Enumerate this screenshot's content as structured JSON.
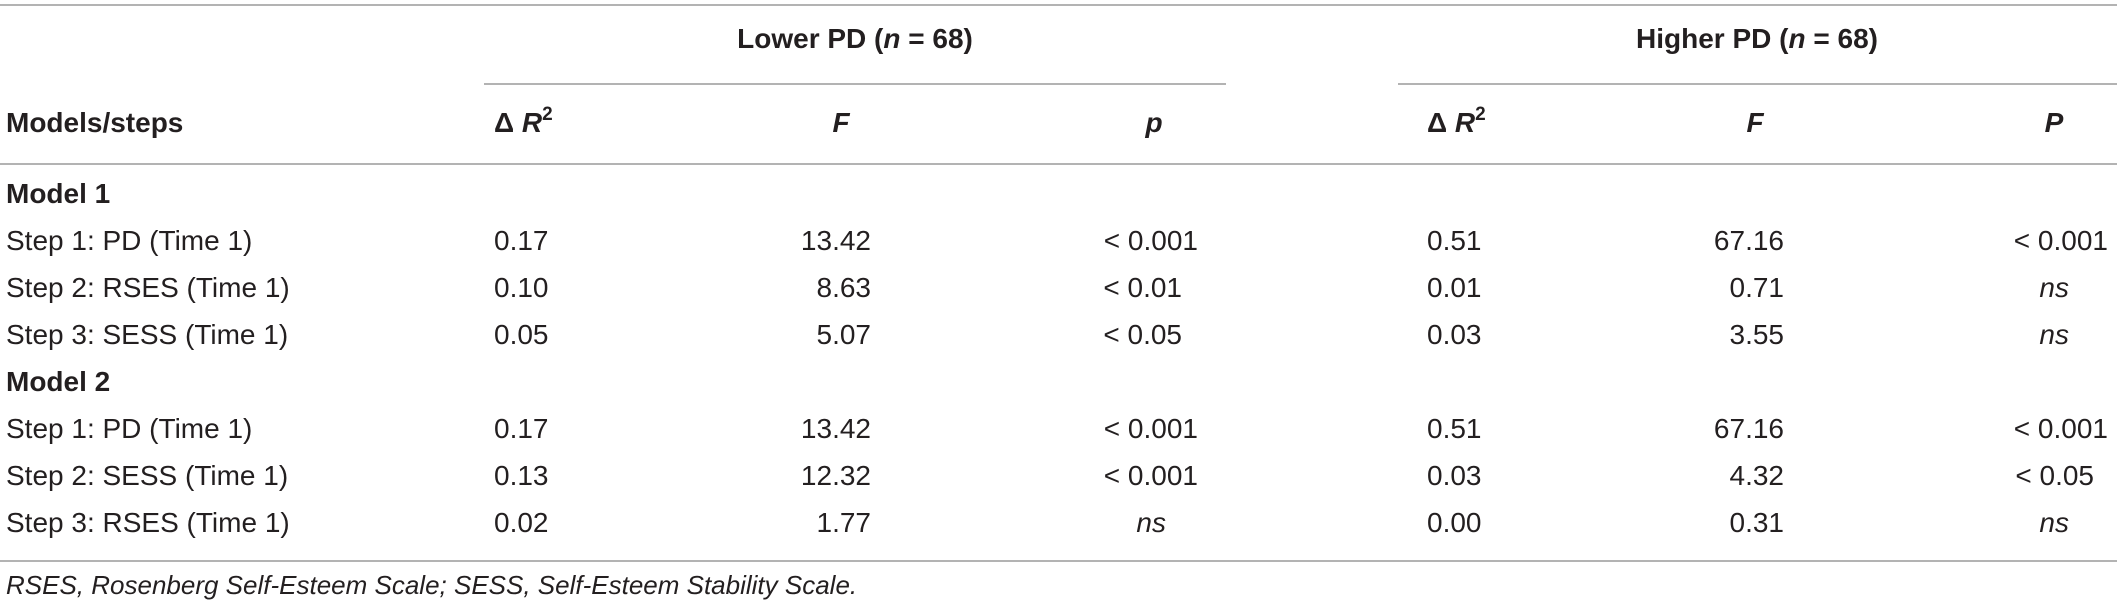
{
  "group_headers": {
    "lower": {
      "label": "Lower PD (",
      "n": "n",
      "eq": " = 68)"
    },
    "higher": {
      "label": "Higher PD (",
      "n": "n",
      "eq": " = 68)"
    }
  },
  "columns": {
    "models_steps": "Models/steps",
    "delta": "Δ ",
    "r": "R",
    "sq": "2",
    "f": "F",
    "p_lower": "p",
    "p_higher": "P"
  },
  "model1": {
    "title": "Model 1",
    "rows": [
      {
        "step": "Step 1: PD (Time 1)",
        "l_dr2": "0.17",
        "l_f": "13.42",
        "l_p": "< 0.001",
        "h_dr2": "0.51",
        "h_f": "67.16",
        "h_p": "< 0.001"
      },
      {
        "step": "Step 2: RSES (Time 1)",
        "l_dr2": "0.10",
        "l_f": "8.63",
        "l_p": "< 0.01",
        "h_dr2": "0.01",
        "h_f": "0.71",
        "h_p": "ns"
      },
      {
        "step": "Step 3: SESS (Time 1)",
        "l_dr2": "0.05",
        "l_f": "5.07",
        "l_p": "< 0.05",
        "h_dr2": "0.03",
        "h_f": "3.55",
        "h_p": "ns"
      }
    ]
  },
  "model2": {
    "title": "Model 2",
    "rows": [
      {
        "step": "Step 1: PD (Time 1)",
        "l_dr2": "0.17",
        "l_f": "13.42",
        "l_p": "< 0.001",
        "h_dr2": "0.51",
        "h_f": "67.16",
        "h_p": "< 0.001"
      },
      {
        "step": "Step 2: SESS (Time 1)",
        "l_dr2": "0.13",
        "l_f": "12.32",
        "l_p": "< 0.001",
        "h_dr2": "0.03",
        "h_f": "4.32",
        "h_p": "< 0.05"
      },
      {
        "step": "Step 3: RSES (Time 1)",
        "l_dr2": "0.02",
        "l_f": "1.77",
        "l_p": "ns",
        "h_dr2": "0.00",
        "h_f": "0.31",
        "h_p": "ns"
      }
    ]
  },
  "footnote": "RSES, Rosenberg Self-Esteem Scale; SESS, Self-Esteem Stability Scale."
}
